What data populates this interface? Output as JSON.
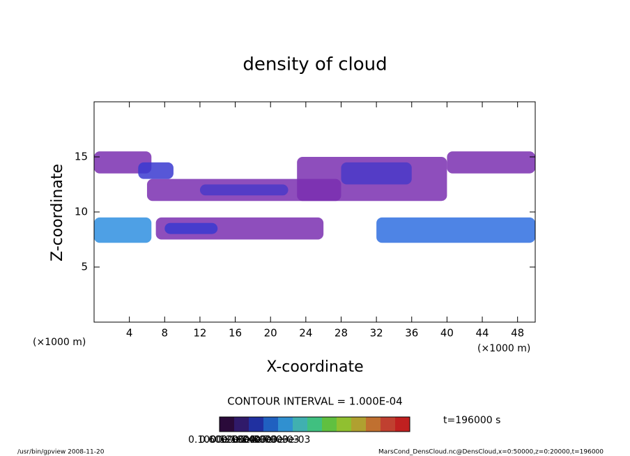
{
  "chart_data": {
    "type": "contour",
    "title": "density of cloud",
    "xlabel": "X-coordinate",
    "ylabel": "Z-coordinate",
    "x_unit": "(×1000 m)",
    "x_unit_right": "(×1000 m)",
    "xlim": [
      0,
      50
    ],
    "ylim": [
      0,
      20
    ],
    "xticks": [
      4,
      8,
      12,
      16,
      20,
      24,
      28,
      32,
      36,
      40,
      44,
      48
    ],
    "yticks": [
      5,
      10,
      15
    ],
    "regions": [
      {
        "x": [
          0,
          6.5
        ],
        "z": [
          13.5,
          15.5
        ],
        "color": "#7a2fb0"
      },
      {
        "x": [
          6,
          28
        ],
        "z": [
          11,
          13
        ],
        "color": "#7a2fb0"
      },
      {
        "x": [
          23,
          40
        ],
        "z": [
          11,
          15
        ],
        "color": "#7a2fb0"
      },
      {
        "x": [
          40,
          50
        ],
        "z": [
          13.5,
          15.5
        ],
        "color": "#7a2fb0"
      },
      {
        "x": [
          5,
          9
        ],
        "z": [
          13,
          14.5
        ],
        "color": "#3a3ad0"
      },
      {
        "x": [
          12,
          22
        ],
        "z": [
          11.5,
          12.5
        ],
        "color": "#4a3ac8"
      },
      {
        "x": [
          28,
          36
        ],
        "z": [
          12.5,
          14.5
        ],
        "color": "#4a3ac8"
      },
      {
        "x": [
          7,
          26
        ],
        "z": [
          7.5,
          9.5
        ],
        "color": "#7a2fb0"
      },
      {
        "x": [
          8,
          14
        ],
        "z": [
          8,
          9
        ],
        "color": "#3a3ad0"
      },
      {
        "x": [
          0,
          6.5
        ],
        "z": [
          7.2,
          9.5
        ],
        "color": "#2f8fe0"
      },
      {
        "x": [
          32,
          50
        ],
        "z": [
          7.2,
          9.5
        ],
        "color": "#2f6fe0"
      }
    ],
    "contour_interval": "CONTOUR INTERVAL = 1.000E-04",
    "time_label": "t=196000 s",
    "colorbar": {
      "colors": [
        "#2a0a3a",
        "#301a6a",
        "#2030a0",
        "#2060c0",
        "#3090d0",
        "#40b0b0",
        "#40c080",
        "#60c040",
        "#90c030",
        "#b0a030",
        "#c07030",
        "#c04030",
        "#c02020"
      ],
      "labels": [
        "0.1000e-06",
        "0.6000e-04",
        "0.1200e-03",
        "0.1800e-03",
        "0.2400e-03",
        "0.3000e-03",
        "0.7000e-03"
      ]
    },
    "footer_left": "/usr/bin/gpview  2008-11-20",
    "footer_right": "MarsCond_DensCloud.nc@DensCloud,x=0:50000,z=0:20000,t=196000"
  }
}
